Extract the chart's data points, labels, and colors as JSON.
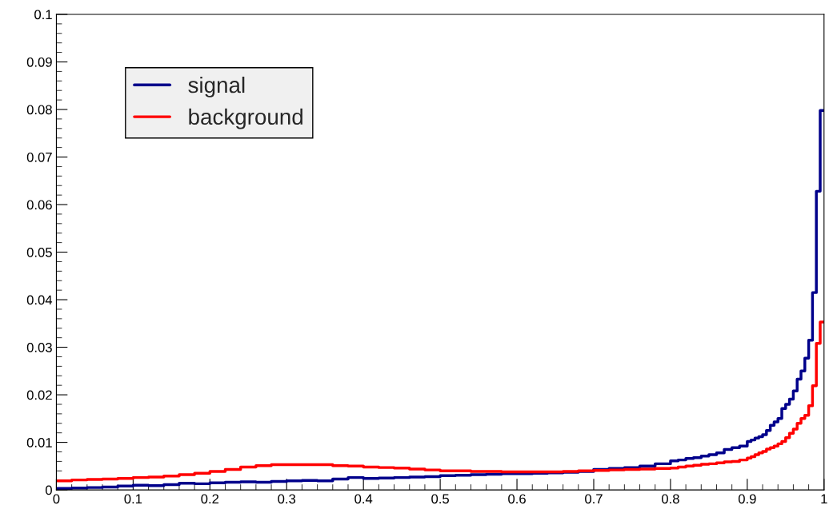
{
  "chart_data": {
    "type": "step",
    "x": [
      0,
      0.02,
      0.04,
      0.06,
      0.08,
      0.1,
      0.12,
      0.14,
      0.16,
      0.18,
      0.2,
      0.22,
      0.24,
      0.26,
      0.28,
      0.3,
      0.32,
      0.34,
      0.36,
      0.38,
      0.4,
      0.42,
      0.44,
      0.46,
      0.48,
      0.5,
      0.52,
      0.54,
      0.56,
      0.58,
      0.6,
      0.62,
      0.64,
      0.66,
      0.68,
      0.7,
      0.72,
      0.74,
      0.76,
      0.78,
      0.8,
      0.81,
      0.82,
      0.83,
      0.84,
      0.85,
      0.86,
      0.87,
      0.88,
      0.89,
      0.9,
      0.905,
      0.91,
      0.915,
      0.92,
      0.925,
      0.93,
      0.935,
      0.94,
      0.945,
      0.95,
      0.955,
      0.96,
      0.965,
      0.97,
      0.975,
      0.98,
      0.985,
      0.99,
      0.995
    ],
    "series": [
      {
        "name": "signal",
        "color": "#00008b",
        "values": [
          0.0003,
          0.0004,
          0.0005,
          0.0006,
          0.0008,
          0.001,
          0.0009,
          0.0011,
          0.0014,
          0.0013,
          0.0015,
          0.0016,
          0.0017,
          0.0016,
          0.0018,
          0.0019,
          0.002,
          0.0019,
          0.0023,
          0.0026,
          0.0024,
          0.0025,
          0.0026,
          0.0027,
          0.0028,
          0.003,
          0.0031,
          0.0032,
          0.0033,
          0.0034,
          0.0034,
          0.0035,
          0.0036,
          0.0037,
          0.0039,
          0.0043,
          0.0045,
          0.0047,
          0.005,
          0.0055,
          0.0061,
          0.0063,
          0.0066,
          0.0068,
          0.0071,
          0.0074,
          0.0078,
          0.0085,
          0.0089,
          0.0092,
          0.0102,
          0.0105,
          0.0109,
          0.0112,
          0.0116,
          0.0125,
          0.0136,
          0.0143,
          0.015,
          0.0171,
          0.018,
          0.0191,
          0.0208,
          0.0233,
          0.025,
          0.0277,
          0.0315,
          0.0415,
          0.0628,
          0.0798
        ]
      },
      {
        "name": "background",
        "color": "#ff0000",
        "values": [
          0.0019,
          0.0021,
          0.0022,
          0.0023,
          0.0024,
          0.0026,
          0.0027,
          0.0029,
          0.0032,
          0.0035,
          0.0039,
          0.0043,
          0.0048,
          0.0051,
          0.0053,
          0.0053,
          0.0053,
          0.0053,
          0.0051,
          0.005,
          0.0048,
          0.0047,
          0.0046,
          0.0044,
          0.0042,
          0.004,
          0.004,
          0.0039,
          0.0039,
          0.0038,
          0.0038,
          0.0038,
          0.0038,
          0.0039,
          0.004,
          0.0041,
          0.0042,
          0.0043,
          0.0044,
          0.0045,
          0.0046,
          0.0048,
          0.005,
          0.0052,
          0.0054,
          0.0055,
          0.0057,
          0.0059,
          0.006,
          0.0063,
          0.0067,
          0.007,
          0.0074,
          0.0078,
          0.0081,
          0.0086,
          0.0089,
          0.0092,
          0.0097,
          0.0102,
          0.011,
          0.0119,
          0.0128,
          0.014,
          0.015,
          0.0157,
          0.0177,
          0.0219,
          0.0308,
          0.0353
        ]
      }
    ],
    "xlim": [
      0,
      1
    ],
    "ylim": [
      0,
      0.1
    ],
    "xticks": [
      0,
      0.1,
      0.2,
      0.3,
      0.4,
      0.5,
      0.6,
      0.7,
      0.8,
      0.9,
      1
    ],
    "yticks": [
      0,
      0.01,
      0.02,
      0.03,
      0.04,
      0.05,
      0.06,
      0.07,
      0.08,
      0.09,
      0.1
    ],
    "legend": "top left",
    "grid": false
  }
}
